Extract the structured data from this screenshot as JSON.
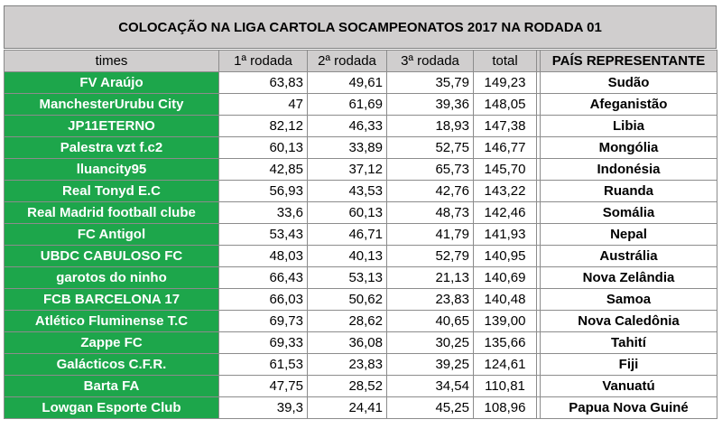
{
  "title": "COLOCAÇÃO NA LIGA CARTOLA SOCAMPEONATOS 2017 NA RODADA 01",
  "headers": {
    "team": "times",
    "r1": "1ª rodada",
    "r2": "2ª rodada",
    "r3": "3ª rodada",
    "total": "total",
    "country": "PAÍS REPRESENTANTE"
  },
  "colors": {
    "team_fill": "#1da64b",
    "header_fill": "#d0cece"
  },
  "rows": [
    {
      "team": "FV Araújo",
      "r1": "63,83",
      "r2": "49,61",
      "r3": "35,79",
      "total": "149,23",
      "country": "Sudão"
    },
    {
      "team": "ManchesterUrubu City",
      "r1": "47",
      "r2": "61,69",
      "r3": "39,36",
      "total": "148,05",
      "country": "Afeganistão"
    },
    {
      "team": "JP11ETERNO",
      "r1": "82,12",
      "r2": "46,33",
      "r3": "18,93",
      "total": "147,38",
      "country": "Libia"
    },
    {
      "team": "Palestra vzt f.c2",
      "r1": "60,13",
      "r2": "33,89",
      "r3": "52,75",
      "total": "146,77",
      "country": "Mongólia"
    },
    {
      "team": "lluancity95",
      "r1": "42,85",
      "r2": "37,12",
      "r3": "65,73",
      "total": "145,70",
      "country": "Indonésia"
    },
    {
      "team": "Real Tonyd E.C",
      "r1": "56,93",
      "r2": "43,53",
      "r3": "42,76",
      "total": "143,22",
      "country": "Ruanda"
    },
    {
      "team": "Real Madrid football clube",
      "r1": "33,6",
      "r2": "60,13",
      "r3": "48,73",
      "total": "142,46",
      "country": "Somália"
    },
    {
      "team": "FC Antigol",
      "r1": "53,43",
      "r2": "46,71",
      "r3": "41,79",
      "total": "141,93",
      "country": "Nepal"
    },
    {
      "team": "UBDC CABULOSO FC",
      "r1": "48,03",
      "r2": "40,13",
      "r3": "52,79",
      "total": "140,95",
      "country": "Austrália"
    },
    {
      "team": "garotos do ninho",
      "r1": "66,43",
      "r2": "53,13",
      "r3": "21,13",
      "total": "140,69",
      "country": "Nova Zelândia"
    },
    {
      "team": "FCB BARCELONA 17",
      "r1": "66,03",
      "r2": "50,62",
      "r3": "23,83",
      "total": "140,48",
      "country": "Samoa"
    },
    {
      "team": "Atlético Fluminense T.C",
      "r1": "69,73",
      "r2": "28,62",
      "r3": "40,65",
      "total": "139,00",
      "country": "Nova Caledônia"
    },
    {
      "team": "Zappe FC",
      "r1": "69,33",
      "r2": "36,08",
      "r3": "30,25",
      "total": "135,66",
      "country": "Tahití"
    },
    {
      "team": "Galácticos C.F.R.",
      "r1": "61,53",
      "r2": "23,83",
      "r3": "39,25",
      "total": "124,61",
      "country": "Fiji"
    },
    {
      "team": "Barta FA",
      "r1": "47,75",
      "r2": "28,52",
      "r3": "34,54",
      "total": "110,81",
      "country": "Vanuatú"
    },
    {
      "team": "Lowgan Esporte Club",
      "r1": "39,3",
      "r2": "24,41",
      "r3": "45,25",
      "total": "108,96",
      "country": "Papua Nova Guiné"
    }
  ]
}
